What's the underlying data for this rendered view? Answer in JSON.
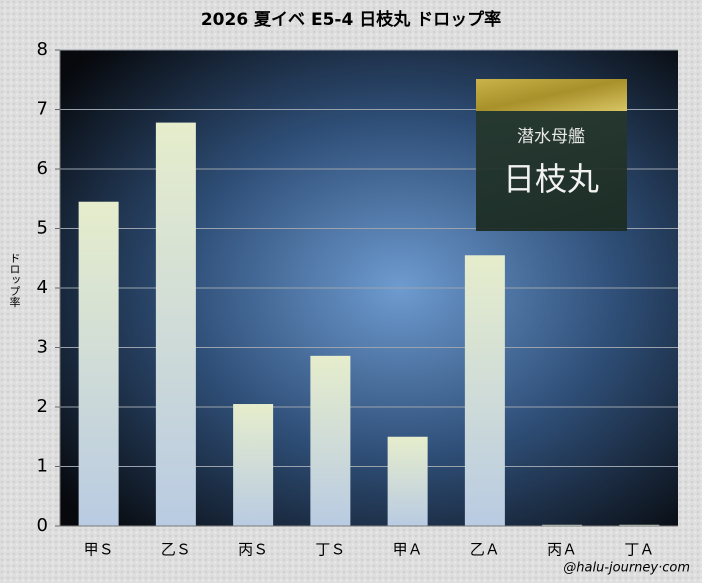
{
  "chart_data": {
    "type": "bar",
    "title": "2026 夏イベ  E5-4  日枝丸 ドロップ率",
    "y_label": "ドロップ率",
    "categories": [
      "甲Ｓ",
      "乙Ｓ",
      "丙Ｓ",
      "丁Ｓ",
      "甲Ａ",
      "乙Ａ",
      "丙Ａ",
      "丁Ａ"
    ],
    "values": [
      5.45,
      6.78,
      2.05,
      2.86,
      1.5,
      4.55,
      0.02,
      0.02
    ],
    "ylim": [
      0,
      8
    ],
    "yticks": [
      0,
      1,
      2,
      3,
      4,
      5,
      6,
      7,
      8
    ],
    "grid": true,
    "annotations": [
      "潜水母艦",
      "日枝丸"
    ],
    "credit": "@halu-journey·com"
  }
}
